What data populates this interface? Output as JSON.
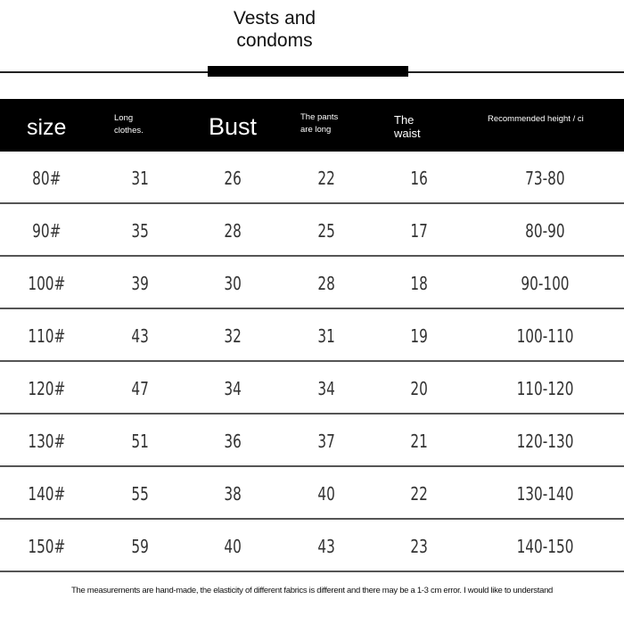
{
  "title_line1": "Vests and",
  "title_line2": "condoms",
  "headers": {
    "size": "size",
    "long_clothes": "Long\nclothes.",
    "bust": "Bust",
    "pants": "The pants\nare long",
    "waist": "The\nwaist",
    "height": "Recommended height / ci"
  },
  "rows": [
    [
      "80#",
      "31",
      "26",
      "22",
      "16",
      "73-80"
    ],
    [
      "90#",
      "35",
      "28",
      "25",
      "17",
      "80-90"
    ],
    [
      "100#",
      "39",
      "30",
      "28",
      "18",
      "90-100"
    ],
    [
      "110#",
      "43",
      "32",
      "31",
      "19",
      "100-110"
    ],
    [
      "120#",
      "47",
      "34",
      "34",
      "20",
      "110-120"
    ],
    [
      "130#",
      "51",
      "36",
      "37",
      "21",
      "120-130"
    ],
    [
      "140#",
      "55",
      "38",
      "40",
      "22",
      "130-140"
    ],
    [
      "150#",
      "59",
      "40",
      "43",
      "23",
      "140-150"
    ]
  ],
  "note": "The measurements are hand-made, the elasticity of different fabrics is different and there may be a 1-3 cm error. I would like to understand"
}
